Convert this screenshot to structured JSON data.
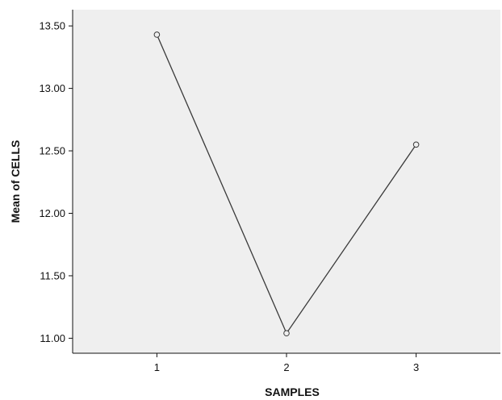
{
  "chart_data": {
    "type": "line",
    "title": "",
    "xlabel": "SAMPLES",
    "ylabel": "Mean of CELLS",
    "categories": [
      "1",
      "2",
      "3"
    ],
    "series": [
      {
        "values": [
          13.43,
          11.04,
          12.55
        ]
      }
    ],
    "xlim": [
      0.35,
      3.65
    ],
    "ylim": [
      10.88,
      13.63
    ],
    "yticks": [
      11.0,
      11.5,
      12.0,
      12.5,
      13.0,
      13.5
    ],
    "ytick_labels": [
      "11.00",
      "11.50",
      "12.00",
      "12.50",
      "13.00",
      "13.50"
    ],
    "grid": false,
    "legend": "none",
    "colors": {
      "plot_background": "#efefef",
      "line": "#3a3a3a",
      "marker_edge": "#3a3a3a",
      "axis": "#111111"
    }
  }
}
